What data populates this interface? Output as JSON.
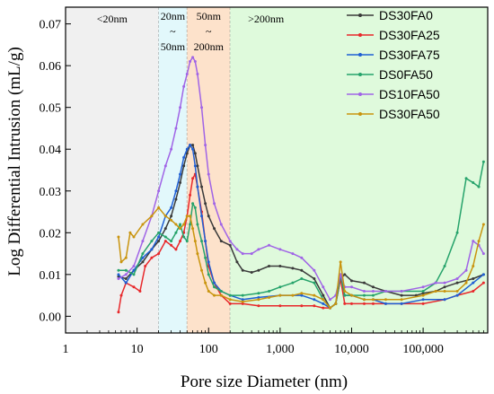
{
  "chart_data": {
    "type": "line",
    "title": "",
    "xlabel": "Pore size Diameter (nm)",
    "ylabel": "Log Differential Intrusion (mL/g)",
    "x_scale": "log",
    "xlim": [
      1,
      800000
    ],
    "ylim": [
      -0.004,
      0.074
    ],
    "x_ticks": [
      {
        "value": 1,
        "label": "1"
      },
      {
        "value": 10,
        "label": "10"
      },
      {
        "value": 100,
        "label": "100"
      },
      {
        "value": 1000,
        "label": "1,000"
      },
      {
        "value": 10000,
        "label": "10,000"
      },
      {
        "value": 100000,
        "label": "100,000"
      }
    ],
    "y_ticks": [
      {
        "value": 0.0,
        "label": "0.00"
      },
      {
        "value": 0.01,
        "label": "0.01"
      },
      {
        "value": 0.02,
        "label": "0.02"
      },
      {
        "value": 0.03,
        "label": "0.03"
      },
      {
        "value": 0.04,
        "label": "0.04"
      },
      {
        "value": 0.05,
        "label": "0.05"
      },
      {
        "value": 0.06,
        "label": "0.06"
      },
      {
        "value": 0.07,
        "label": "0.07"
      }
    ],
    "grid": false,
    "legend_position": "top-right",
    "regions": [
      {
        "from": 1,
        "to": 20,
        "color": "#f0f0f0",
        "labels": [
          "<20nm"
        ]
      },
      {
        "from": 20,
        "to": 50,
        "color": "#e2f8fb",
        "labels": [
          "20nm",
          "~",
          "50nm"
        ]
      },
      {
        "from": 50,
        "to": 200,
        "color": "#fde2cb",
        "labels": [
          "50nm",
          "~",
          "200nm"
        ]
      },
      {
        "from": 200,
        "to": 800000,
        "color": "#dffadc",
        "labels": [
          ">200nm"
        ]
      }
    ],
    "series": [
      {
        "name": "DS30FA0",
        "color": "#3a3a3a",
        "x": [
          5.5,
          7,
          9,
          12,
          16,
          20,
          25,
          30,
          35,
          40,
          45,
          50,
          55,
          60,
          65,
          70,
          80,
          90,
          100,
          120,
          150,
          200,
          250,
          300,
          400,
          500,
          700,
          1000,
          1500,
          2000,
          3000,
          4000,
          5000,
          6000,
          7000,
          8000,
          10000,
          15000,
          20000,
          30000,
          50000,
          80000,
          100000,
          150000,
          200000,
          300000,
          500000,
          700000
        ],
        "y": [
          0.0095,
          0.009,
          0.011,
          0.013,
          0.016,
          0.018,
          0.021,
          0.024,
          0.028,
          0.032,
          0.036,
          0.039,
          0.041,
          0.041,
          0.039,
          0.036,
          0.031,
          0.027,
          0.024,
          0.021,
          0.018,
          0.017,
          0.013,
          0.011,
          0.0105,
          0.011,
          0.012,
          0.012,
          0.0115,
          0.011,
          0.009,
          0.005,
          0.002,
          0.003,
          0.009,
          0.01,
          0.0085,
          0.008,
          0.007,
          0.006,
          0.005,
          0.005,
          0.0055,
          0.006,
          0.007,
          0.008,
          0.009,
          0.01
        ]
      },
      {
        "name": "DS30FA25",
        "color": "#e8282b",
        "x": [
          5.5,
          6,
          7,
          9,
          11,
          13,
          16,
          20,
          25,
          30,
          35,
          40,
          45,
          50,
          55,
          60,
          65,
          70,
          80,
          90,
          100,
          120,
          150,
          200,
          300,
          500,
          1000,
          2000,
          3000,
          4000,
          5000,
          6000,
          7000,
          8000,
          10000,
          15000,
          20000,
          30000,
          50000,
          100000,
          200000,
          300000,
          500000,
          700000
        ],
        "y": [
          0.001,
          0.005,
          0.008,
          0.007,
          0.006,
          0.012,
          0.014,
          0.015,
          0.018,
          0.017,
          0.016,
          0.018,
          0.02,
          0.024,
          0.029,
          0.033,
          0.034,
          0.031,
          0.025,
          0.018,
          0.012,
          0.008,
          0.005,
          0.003,
          0.003,
          0.0025,
          0.0025,
          0.0025,
          0.0025,
          0.002,
          0.002,
          0.003,
          0.009,
          0.003,
          0.003,
          0.003,
          0.003,
          0.003,
          0.003,
          0.003,
          0.004,
          0.005,
          0.006,
          0.008
        ]
      },
      {
        "name": "DS30FA75",
        "color": "#1f5fd4",
        "x": [
          5.5,
          7,
          9,
          12,
          16,
          20,
          25,
          30,
          35,
          40,
          45,
          50,
          55,
          60,
          65,
          70,
          80,
          90,
          100,
          120,
          150,
          200,
          300,
          500,
          1000,
          2000,
          3000,
          4000,
          5000,
          6000,
          7000,
          8000,
          10000,
          15000,
          20000,
          30000,
          50000,
          100000,
          200000,
          300000,
          500000,
          700000
        ],
        "y": [
          0.01,
          0.008,
          0.011,
          0.014,
          0.016,
          0.019,
          0.024,
          0.026,
          0.03,
          0.034,
          0.038,
          0.04,
          0.041,
          0.04,
          0.036,
          0.031,
          0.024,
          0.018,
          0.013,
          0.008,
          0.006,
          0.005,
          0.004,
          0.0045,
          0.005,
          0.005,
          0.004,
          0.003,
          0.002,
          0.003,
          0.01,
          0.005,
          0.005,
          0.004,
          0.004,
          0.003,
          0.003,
          0.004,
          0.004,
          0.005,
          0.008,
          0.01
        ]
      },
      {
        "name": "DS0FA50",
        "color": "#26a36b",
        "x": [
          5.5,
          7,
          9,
          12,
          16,
          20,
          25,
          30,
          35,
          40,
          45,
          50,
          55,
          60,
          65,
          70,
          80,
          90,
          100,
          120,
          150,
          200,
          300,
          500,
          700,
          1000,
          1500,
          2000,
          3000,
          4000,
          5000,
          6000,
          7000,
          8000,
          10000,
          15000,
          20000,
          30000,
          50000,
          100000,
          150000,
          200000,
          300000,
          400000,
          500000,
          600000,
          700000
        ],
        "y": [
          0.011,
          0.011,
          0.01,
          0.015,
          0.018,
          0.02,
          0.019,
          0.018,
          0.02,
          0.022,
          0.019,
          0.018,
          0.022,
          0.027,
          0.026,
          0.022,
          0.018,
          0.014,
          0.01,
          0.007,
          0.006,
          0.005,
          0.005,
          0.0055,
          0.006,
          0.007,
          0.008,
          0.009,
          0.008,
          0.004,
          0.002,
          0.003,
          0.01,
          0.005,
          0.005,
          0.005,
          0.005,
          0.006,
          0.006,
          0.006,
          0.008,
          0.012,
          0.02,
          0.033,
          0.032,
          0.031,
          0.037
        ]
      },
      {
        "name": "DS10FA50",
        "color": "#a064e6",
        "x": [
          5.5,
          7,
          9,
          12,
          16,
          20,
          25,
          30,
          35,
          40,
          45,
          50,
          55,
          60,
          65,
          70,
          80,
          90,
          100,
          120,
          150,
          200,
          250,
          300,
          400,
          500,
          700,
          1000,
          1500,
          2000,
          3000,
          4000,
          5000,
          6000,
          7000,
          8000,
          10000,
          15000,
          20000,
          30000,
          50000,
          100000,
          150000,
          200000,
          300000,
          400000,
          500000,
          600000,
          700000
        ],
        "y": [
          0.009,
          0.01,
          0.012,
          0.018,
          0.024,
          0.03,
          0.036,
          0.04,
          0.045,
          0.05,
          0.055,
          0.058,
          0.061,
          0.062,
          0.061,
          0.058,
          0.05,
          0.041,
          0.034,
          0.027,
          0.022,
          0.018,
          0.016,
          0.015,
          0.015,
          0.016,
          0.017,
          0.016,
          0.015,
          0.014,
          0.011,
          0.007,
          0.004,
          0.005,
          0.01,
          0.007,
          0.007,
          0.006,
          0.006,
          0.006,
          0.006,
          0.007,
          0.008,
          0.008,
          0.009,
          0.011,
          0.018,
          0.017,
          0.015
        ]
      },
      {
        "name": "DS30FA50",
        "color": "#c9940e",
        "x": [
          5.5,
          6,
          7,
          8,
          9,
          12,
          16,
          20,
          25,
          30,
          35,
          40,
          45,
          50,
          55,
          60,
          65,
          70,
          80,
          90,
          100,
          120,
          150,
          200,
          300,
          500,
          700,
          1000,
          1500,
          2000,
          3000,
          4000,
          5000,
          6000,
          7000,
          8000,
          10000,
          15000,
          20000,
          30000,
          50000,
          100000,
          150000,
          200000,
          300000,
          400000,
          500000,
          600000,
          700000
        ],
        "y": [
          0.019,
          0.013,
          0.014,
          0.02,
          0.019,
          0.022,
          0.024,
          0.026,
          0.024,
          0.023,
          0.022,
          0.021,
          0.022,
          0.024,
          0.024,
          0.021,
          0.018,
          0.015,
          0.011,
          0.008,
          0.006,
          0.005,
          0.005,
          0.004,
          0.0035,
          0.004,
          0.0045,
          0.005,
          0.005,
          0.0055,
          0.005,
          0.004,
          0.002,
          0.003,
          0.013,
          0.006,
          0.005,
          0.004,
          0.004,
          0.004,
          0.004,
          0.005,
          0.006,
          0.006,
          0.006,
          0.008,
          0.012,
          0.018,
          0.022
        ]
      }
    ]
  }
}
